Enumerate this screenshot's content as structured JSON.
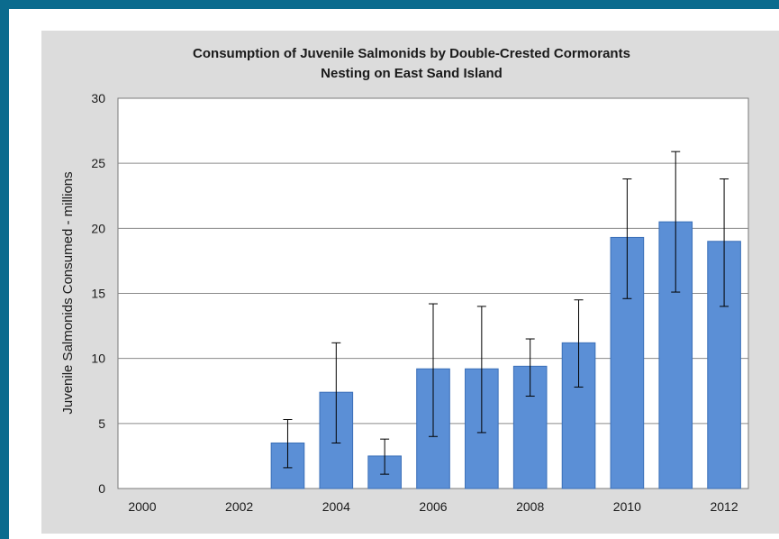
{
  "colors": {
    "frame": "#0b6b8e",
    "background": "#dcdcdc",
    "plot": "#ffffff",
    "bar": "#5b8fd6",
    "bar_edge": "#3a6fb8",
    "grid": "#8a8a8a"
  },
  "chart_data": {
    "type": "bar",
    "title": "Consumption of Juvenile Salmonids by Double-Crested Cormorants",
    "subtitle": "Nesting on East Sand Island",
    "xlabel": "",
    "ylabel": "Juvenile Salmonids Consumed - millions",
    "ylim": [
      0,
      30
    ],
    "yticks": [
      0,
      5,
      10,
      15,
      20,
      25,
      30
    ],
    "xticks": [
      "2000",
      "2002",
      "2004",
      "2006",
      "2008",
      "2010",
      "2012"
    ],
    "grid": true,
    "legend": "none",
    "categories": [
      "2000",
      "2001",
      "2002",
      "2003",
      "2004",
      "2005",
      "2006",
      "2007",
      "2008",
      "2009",
      "2010",
      "2011",
      "2012"
    ],
    "values": [
      null,
      null,
      null,
      3.5,
      7.4,
      2.5,
      9.2,
      9.2,
      9.4,
      11.2,
      19.3,
      20.5,
      19.0
    ],
    "error_low": [
      null,
      null,
      null,
      1.6,
      3.5,
      1.1,
      4.0,
      4.3,
      7.1,
      7.8,
      14.6,
      15.1,
      14.0
    ],
    "error_high": [
      null,
      null,
      null,
      5.3,
      11.2,
      3.8,
      14.2,
      14.0,
      11.5,
      14.5,
      23.8,
      25.9,
      23.8
    ]
  }
}
